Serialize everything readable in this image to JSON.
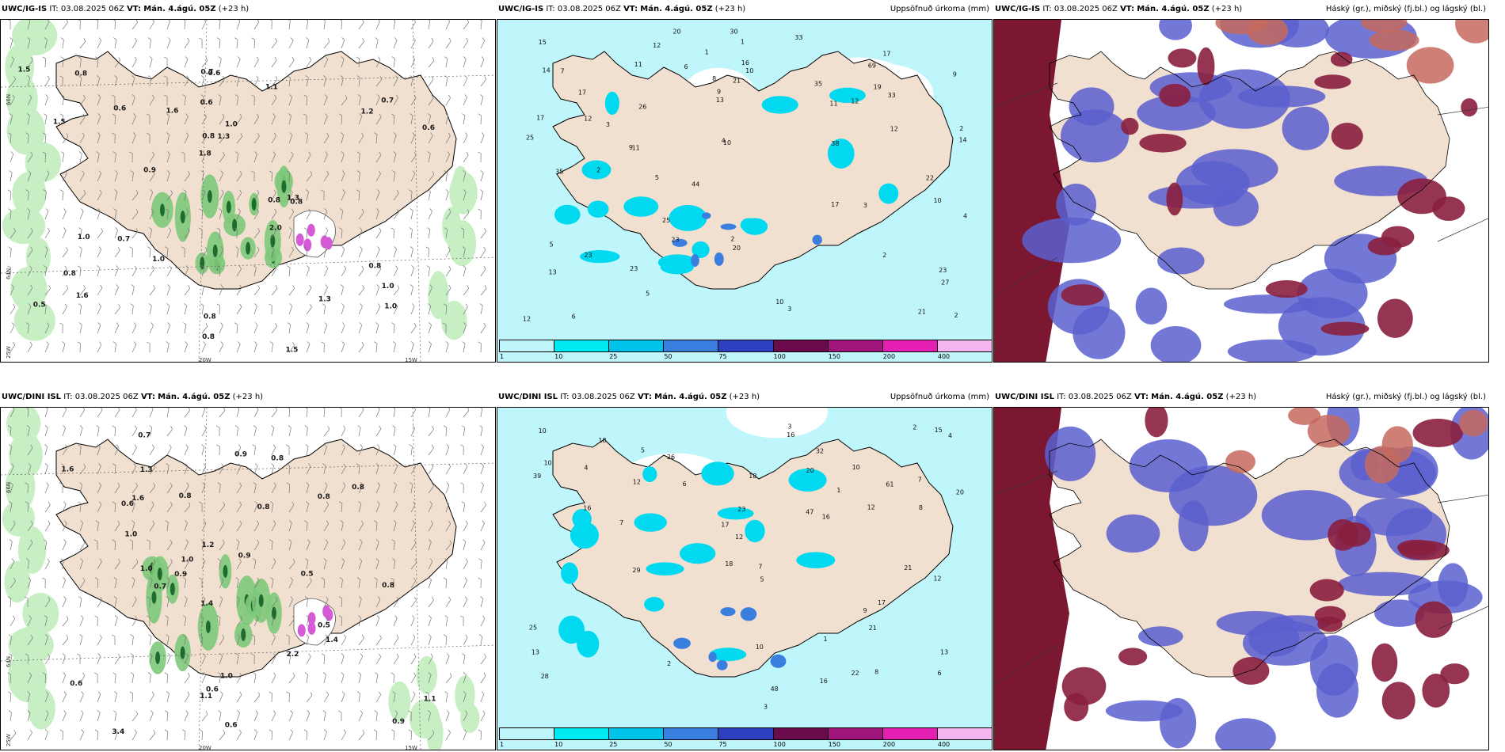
{
  "panels": [
    {
      "model": "UWC/IG-IS",
      "it": "03.08.2025 06Z",
      "vt": "Mán. 4.ágú. 05Z",
      "lead": "(+23 h)",
      "title": "",
      "kind": "precip-wind"
    },
    {
      "model": "UWC/IG-IS",
      "it": "03.08.2025 06Z",
      "vt": "Mán. 4.ágú. 05Z",
      "lead": "(+23 h)",
      "title": "Uppsöfnuð úrkoma (mm)",
      "kind": "accum"
    },
    {
      "model": "UWC/IG-IS",
      "it": "03.08.2025 06Z",
      "vt": "Mán. 4.ágú. 05Z",
      "lead": "(+23 h)",
      "title": "Háský (gr.), miðský (fj.bl.) og lágský (bl.)",
      "kind": "cloud"
    },
    {
      "model": "UWC/DINI ISL",
      "it": "03.08.2025 06Z",
      "vt": "Mán. 4.ágú. 05Z",
      "lead": "(+23 h)",
      "title": "",
      "kind": "precip-wind"
    },
    {
      "model": "UWC/DINI ISL",
      "it": "03.08.2025 06Z",
      "vt": "Mán. 4.ágú. 05Z",
      "lead": "(+23 h)",
      "title": "Uppsöfnuð úrkoma (mm)",
      "kind": "accum"
    },
    {
      "model": "UWC/DINI ISL",
      "it": "03.08.2025 06Z",
      "vt": "Mán. 4.ágú. 05Z",
      "lead": "(+23 h)",
      "title": "Háský (gr.), miðský (fj.bl.) og lágský (bl.)",
      "kind": "cloud"
    }
  ],
  "labels": {
    "it": "IT:",
    "vt": "VT:"
  },
  "axis_labels": {
    "lat_top": "66N",
    "lat_mid": "64N",
    "lon_left": "25W",
    "lon_mid": "20W",
    "lon_right": "15W",
    "lat_top_b": "65N",
    "lat_mid_b": "64N"
  },
  "colorbar": {
    "ticks": [
      "1",
      "10",
      "25",
      "50",
      "75",
      "100",
      "150",
      "200",
      "400"
    ],
    "colors": [
      "#bff6fb",
      "#00eaf2",
      "#00c3ea",
      "#3a7ee0",
      "#2b3fbf",
      "#6a0b4c",
      "#a0157c",
      "#e61fb3",
      "#f3b5ef"
    ]
  },
  "precip_values_top": [
    "0.9",
    "1.1",
    "0.5",
    "0.7",
    "0.6",
    "0.7",
    "0.6",
    "1.0",
    "0.8",
    "0.6",
    "1.0",
    "0.8",
    "1.5",
    "0.8",
    "0.6",
    "0.8",
    "0.7",
    "1.8",
    "1.0",
    "0.8",
    "0.8",
    "1.5",
    "1.0",
    "1.3",
    "0.8",
    "1.3",
    "0.8",
    "1.6",
    "1.5",
    "2.0",
    "1.6",
    "1.2",
    "1.3",
    "1.0"
  ],
  "precip_values_bottom": [
    "0.8",
    "0.8",
    "0.8",
    "0.6",
    "0.9",
    "0.6",
    "0.5",
    "0.7",
    "0.5",
    "0.9",
    "0.6",
    "0.7",
    "1.6",
    "1.4",
    "2.2",
    "0.9",
    "1.0",
    "0.8",
    "1.1",
    "1.2",
    "1.0",
    "0.8",
    "1.1",
    "1.3",
    "1.0",
    "0.8",
    "0.9",
    "1.4",
    "0.6",
    "1.0",
    "1.6",
    "3.4"
  ],
  "accum_values_top": [
    "12",
    "10",
    "12",
    "10",
    "11",
    "5",
    "9",
    "3",
    "23",
    "35",
    "33",
    "35",
    "17",
    "26",
    "2",
    "2",
    "11",
    "12",
    "10",
    "6",
    "1",
    "9",
    "3",
    "2",
    "4",
    "2",
    "69",
    "17",
    "25",
    "23",
    "14",
    "17",
    "38",
    "12",
    "12",
    "21",
    "44",
    "13",
    "22",
    "15",
    "19",
    "23",
    "17",
    "11",
    "7",
    "14",
    "20",
    "16",
    "27",
    "30",
    "21",
    "20",
    "25",
    "33",
    "10",
    "8",
    "4",
    "3",
    "5",
    "6",
    "2",
    "9",
    "13",
    "23",
    "5",
    "1"
  ],
  "accum_values_bottom": [
    "12",
    "12",
    "10",
    "10",
    "7",
    "7",
    "32",
    "18",
    "29",
    "25",
    "16",
    "15",
    "16",
    "10",
    "5",
    "6",
    "20",
    "16",
    "13",
    "12",
    "12",
    "17",
    "8",
    "48",
    "20",
    "39",
    "21",
    "13",
    "17",
    "23",
    "16",
    "18",
    "9",
    "18",
    "26",
    "28",
    "21",
    "22",
    "47",
    "61",
    "10",
    "8",
    "4",
    "3",
    "4",
    "5",
    "3",
    "1",
    "2",
    "7",
    "6",
    "2",
    "1"
  ]
}
